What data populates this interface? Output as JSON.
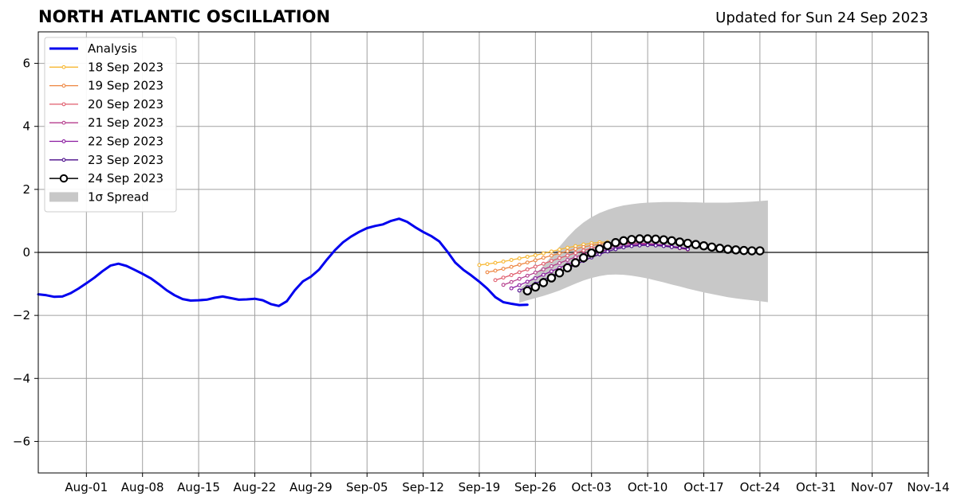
{
  "title": "NORTH ATLANTIC OSCILLATION",
  "subtitle": "Updated for Sun 24 Sep 2023",
  "chart_data": {
    "type": "line",
    "title": "NORTH ATLANTIC OSCILLATION",
    "xlabel": "",
    "ylabel": "",
    "x_axis": {
      "type": "date",
      "start": "2023-07-26",
      "end": "2023-11-14"
    },
    "ylim": [
      -7,
      7
    ],
    "grid": true,
    "zero_line": true,
    "legend_position": "upper-left",
    "x_ticks": [
      {
        "date": "2023-08-01",
        "label": "Aug-01"
      },
      {
        "date": "2023-08-08",
        "label": "Aug-08"
      },
      {
        "date": "2023-08-15",
        "label": "Aug-15"
      },
      {
        "date": "2023-08-22",
        "label": "Aug-22"
      },
      {
        "date": "2023-08-29",
        "label": "Aug-29"
      },
      {
        "date": "2023-09-05",
        "label": "Sep-05"
      },
      {
        "date": "2023-09-12",
        "label": "Sep-12"
      },
      {
        "date": "2023-09-19",
        "label": "Sep-19"
      },
      {
        "date": "2023-09-26",
        "label": "Sep-26"
      },
      {
        "date": "2023-10-03",
        "label": "Oct-03"
      },
      {
        "date": "2023-10-10",
        "label": "Oct-10"
      },
      {
        "date": "2023-10-17",
        "label": "Oct-17"
      },
      {
        "date": "2023-10-24",
        "label": "Oct-24"
      },
      {
        "date": "2023-10-31",
        "label": "Oct-31"
      },
      {
        "date": "2023-11-07",
        "label": "Nov-07"
      },
      {
        "date": "2023-11-14",
        "label": "Nov-14"
      }
    ],
    "y_ticks": [
      {
        "value": 6,
        "label": "6"
      },
      {
        "value": 4,
        "label": "4"
      },
      {
        "value": 2,
        "label": "2"
      },
      {
        "value": 0,
        "label": "0"
      },
      {
        "value": -2,
        "label": "−2"
      },
      {
        "value": -4,
        "label": "−4"
      },
      {
        "value": -6,
        "label": "−6"
      }
    ],
    "analysis": {
      "name": "Analysis",
      "color": "#0000ee",
      "start_date": "2023-07-26",
      "values": [
        -1.33,
        -1.36,
        -1.41,
        -1.4,
        -1.3,
        -1.15,
        -0.98,
        -0.8,
        -0.6,
        -0.42,
        -0.36,
        -0.43,
        -0.55,
        -0.68,
        -0.82,
        -1.0,
        -1.2,
        -1.36,
        -1.48,
        -1.53,
        -1.52,
        -1.5,
        -1.44,
        -1.4,
        -1.45,
        -1.5,
        -1.49,
        -1.47,
        -1.52,
        -1.64,
        -1.7,
        -1.55,
        -1.2,
        -0.92,
        -0.77,
        -0.55,
        -0.23,
        0.07,
        0.32,
        0.5,
        0.65,
        0.77,
        0.84,
        0.89,
        1.0,
        1.07,
        0.97,
        0.8,
        0.65,
        0.52,
        0.35,
        0.03,
        -0.32,
        -0.55,
        -0.73,
        -0.93,
        -1.15,
        -1.42,
        -1.58,
        -1.63,
        -1.67,
        -1.66
      ]
    },
    "forecasts": [
      {
        "name": "18 Sep 2023",
        "color": "#f7b731",
        "start_date": "2023-09-19",
        "values": [
          -0.4,
          -0.37,
          -0.33,
          -0.29,
          -0.24,
          -0.19,
          -0.14,
          -0.09,
          -0.03,
          0.03,
          0.09,
          0.15,
          0.2,
          0.25,
          0.29,
          0.32,
          0.33
        ]
      },
      {
        "name": "19 Sep 2023",
        "color": "#ee8640",
        "start_date": "2023-09-20",
        "values": [
          -0.63,
          -0.58,
          -0.52,
          -0.46,
          -0.39,
          -0.32,
          -0.25,
          -0.17,
          -0.1,
          -0.03,
          0.04,
          0.11,
          0.17,
          0.22,
          0.26,
          0.29,
          0.3
        ]
      },
      {
        "name": "20 Sep 2023",
        "color": "#e05c6c",
        "start_date": "2023-09-21",
        "values": [
          -0.88,
          -0.8,
          -0.72,
          -0.63,
          -0.54,
          -0.45,
          -0.36,
          -0.27,
          -0.18,
          -0.1,
          -0.02,
          0.06,
          0.13,
          0.19,
          0.24,
          0.28,
          0.3,
          0.3,
          0.29,
          0.27,
          0.24,
          0.21,
          0.17,
          0.13,
          0.09
        ]
      },
      {
        "name": "21 Sep 2023",
        "color": "#b43c8c",
        "start_date": "2023-09-22",
        "values": [
          -1.03,
          -0.94,
          -0.84,
          -0.74,
          -0.64,
          -0.54,
          -0.44,
          -0.34,
          -0.24,
          -0.15,
          -0.06,
          0.03,
          0.1,
          0.17,
          0.22,
          0.26,
          0.28,
          0.29,
          0.28,
          0.26,
          0.23,
          0.19,
          0.15,
          0.11
        ]
      },
      {
        "name": "22 Sep 2023",
        "color": "#8a1aa0",
        "start_date": "2023-09-23",
        "values": [
          -1.14,
          -1.04,
          -0.93,
          -0.82,
          -0.71,
          -0.6,
          -0.49,
          -0.38,
          -0.28,
          -0.18,
          -0.08,
          0.01,
          0.09,
          0.15,
          0.2,
          0.23,
          0.25,
          0.25,
          0.24,
          0.22,
          0.19,
          0.16,
          0.12
        ]
      },
      {
        "name": "23 Sep 2023",
        "color": "#4a0a8a",
        "start_date": "2023-09-24",
        "values": [
          -1.21,
          -1.1,
          -0.99,
          -0.87,
          -0.75,
          -0.63,
          -0.51,
          -0.39,
          -0.27,
          -0.16,
          -0.06,
          0.03,
          0.1,
          0.16,
          0.2,
          0.22,
          0.23,
          0.22,
          0.2,
          0.17,
          0.14,
          0.1
        ]
      }
    ],
    "current_forecast": {
      "name": "24 Sep 2023",
      "color": "#000000",
      "start_date": "2023-09-25",
      "values": [
        -1.22,
        -1.1,
        -0.96,
        -0.81,
        -0.65,
        -0.49,
        -0.33,
        -0.17,
        -0.02,
        0.11,
        0.22,
        0.31,
        0.37,
        0.41,
        0.43,
        0.43,
        0.42,
        0.4,
        0.37,
        0.33,
        0.29,
        0.25,
        0.21,
        0.17,
        0.13,
        0.1,
        0.08,
        0.06,
        0.05,
        0.05
      ]
    },
    "spread": {
      "name": "1σ Spread",
      "color": "#c8c8c8",
      "start_date": "2023-09-24",
      "upper": [
        -1.15,
        -0.95,
        -0.7,
        -0.42,
        -0.12,
        0.18,
        0.48,
        0.74,
        0.95,
        1.12,
        1.25,
        1.35,
        1.43,
        1.49,
        1.53,
        1.56,
        1.58,
        1.59,
        1.6,
        1.6,
        1.6,
        1.59,
        1.59,
        1.58,
        1.58,
        1.58,
        1.58,
        1.59,
        1.6,
        1.61,
        1.63,
        1.65
      ],
      "lower": [
        -1.6,
        -1.52,
        -1.45,
        -1.38,
        -1.3,
        -1.21,
        -1.1,
        -0.99,
        -0.89,
        -0.81,
        -0.75,
        -0.71,
        -0.7,
        -0.71,
        -0.74,
        -0.78,
        -0.83,
        -0.89,
        -0.95,
        -1.02,
        -1.08,
        -1.15,
        -1.21,
        -1.27,
        -1.32,
        -1.37,
        -1.42,
        -1.46,
        -1.49,
        -1.52,
        -1.55,
        -1.58
      ]
    }
  },
  "legend": [
    {
      "label": "Analysis",
      "color": "#0000ee",
      "style": "thick-line"
    },
    {
      "label": "18 Sep 2023",
      "color": "#f7b731",
      "style": "line-dot"
    },
    {
      "label": "19 Sep 2023",
      "color": "#ee8640",
      "style": "line-dot"
    },
    {
      "label": "20 Sep 2023",
      "color": "#e05c6c",
      "style": "line-dot"
    },
    {
      "label": "21 Sep 2023",
      "color": "#b43c8c",
      "style": "line-dot"
    },
    {
      "label": "22 Sep 2023",
      "color": "#8a1aa0",
      "style": "line-dot"
    },
    {
      "label": "23 Sep 2023",
      "color": "#4a0a8a",
      "style": "line-dot"
    },
    {
      "label": "24 Sep 2023",
      "color": "#000000",
      "style": "line-circle"
    },
    {
      "label": "1σ Spread",
      "color": "#c8c8c8",
      "style": "patch"
    }
  ]
}
